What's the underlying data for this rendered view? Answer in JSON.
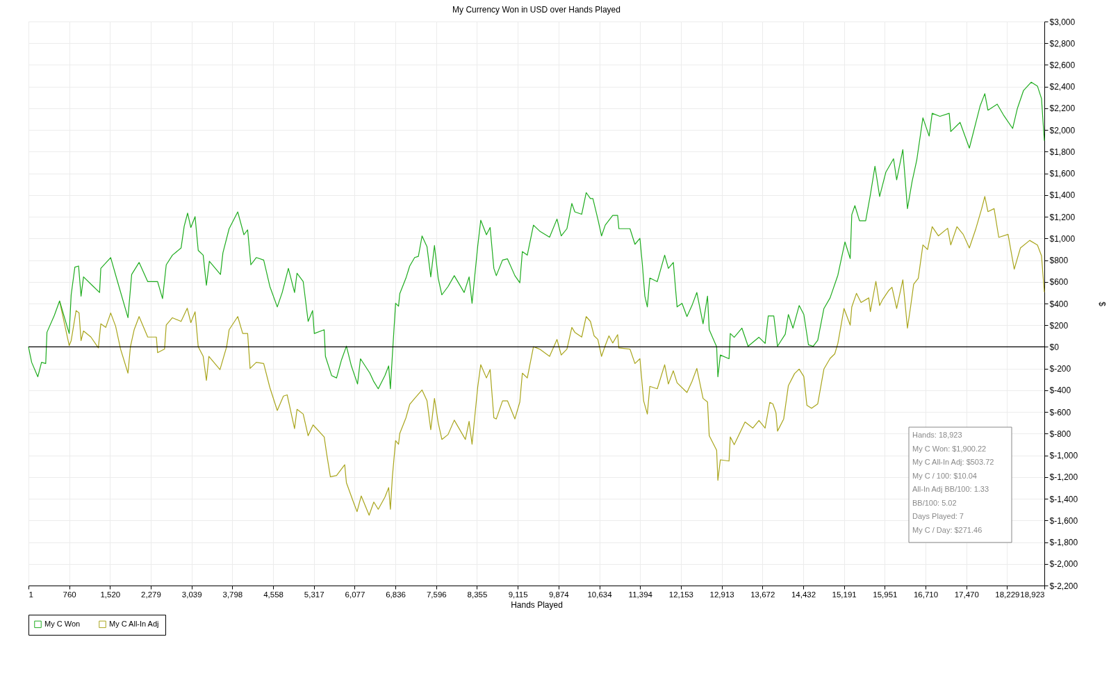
{
  "chart_data": {
    "type": "line",
    "title": "My Currency Won in USD over Hands Played",
    "xlabel": "Hands Played",
    "ylabel": "$",
    "xlim": [
      1,
      18923
    ],
    "xticks": [
      1,
      760,
      {
        "value": 1520,
        "label": "1,520"
      },
      {
        "value": 2279,
        "label": "2,279"
      },
      {
        "value": 3039,
        "label": "3,039"
      },
      {
        "value": 3798,
        "label": "3,798"
      },
      {
        "value": 4558,
        "label": "4,558"
      },
      {
        "value": 5317,
        "label": "5,317"
      },
      {
        "value": 6077,
        "label": "6,077"
      },
      {
        "value": 6836,
        "label": "6,836"
      },
      {
        "value": 7596,
        "label": "7,596"
      },
      {
        "value": 8355,
        "label": "8,355"
      },
      {
        "value": 9115,
        "label": "9,115"
      },
      {
        "value": 9874,
        "label": "9,874"
      },
      {
        "value": 10634,
        "label": "10,634"
      },
      {
        "value": 11394,
        "label": "11,394"
      },
      {
        "value": 12153,
        "label": "12,153"
      },
      {
        "value": 12913,
        "label": "12,913"
      },
      {
        "value": 13672,
        "label": "13,672"
      },
      {
        "value": 14432,
        "label": "14,432"
      },
      {
        "value": 15191,
        "label": "15,191"
      },
      {
        "value": 15951,
        "label": "15,951"
      },
      {
        "value": 16710,
        "label": "16,710"
      },
      {
        "value": 17470,
        "label": "17,470"
      },
      {
        "value": 18229,
        "label": "18,229"
      },
      {
        "value": 18923,
        "label": "18,923"
      }
    ],
    "ylim": [
      -2200,
      3000
    ],
    "yticks": [
      {
        "value": -2200,
        "label": "$-2,200"
      },
      {
        "value": -2000,
        "label": "$-2,000"
      },
      {
        "value": -1800,
        "label": "$-1,800"
      },
      {
        "value": -1600,
        "label": "$-1,600"
      },
      {
        "value": -1400,
        "label": "$-1,400"
      },
      {
        "value": -1200,
        "label": "$-1,200"
      },
      {
        "value": -1000,
        "label": "$-1,000"
      },
      {
        "value": -800,
        "label": "$-800"
      },
      {
        "value": -600,
        "label": "$-600"
      },
      {
        "value": -400,
        "label": "$-400"
      },
      {
        "value": -200,
        "label": "$-200"
      },
      {
        "value": 0,
        "label": "$0"
      },
      {
        "value": 200,
        "label": "$200"
      },
      {
        "value": 400,
        "label": "$400"
      },
      {
        "value": 600,
        "label": "$600"
      },
      {
        "value": 800,
        "label": "$800"
      },
      {
        "value": 1000,
        "label": "$1,000"
      },
      {
        "value": 1200,
        "label": "$1,200"
      },
      {
        "value": 1400,
        "label": "$1,400"
      },
      {
        "value": 1600,
        "label": "$1,600"
      },
      {
        "value": 1800,
        "label": "$1,800"
      },
      {
        "value": 2000,
        "label": "$2,000"
      },
      {
        "value": 2200,
        "label": "$2,200"
      },
      {
        "value": 2400,
        "label": "$2,400"
      },
      {
        "value": 2600,
        "label": "$2,600"
      },
      {
        "value": 2800,
        "label": "$2,800"
      },
      {
        "value": 3000,
        "label": "$3,000"
      }
    ],
    "grid": true,
    "legend": "bottom left",
    "marker": "none",
    "line_style": "solid",
    "ref_lines": [
      {
        "axis": "y",
        "value": 0,
        "color": "#000000"
      }
    ],
    "annotations": [
      "Hands: 18,923",
      "My C Won: $1,900.22",
      "My C All-In Adj: $503.72",
      "My C / 100: $10.04",
      "All-In Adj BB/100: 1.33",
      "BB/100: 5.02",
      "Days Played: 7",
      "My C / Day: $271.46"
    ],
    "series": [
      {
        "name": "My C Won",
        "color": "#1fac1f",
        "x": [
          1,
          60,
          175,
          244,
          322,
          345,
          483,
          580,
          759,
          796,
          865,
          934,
          980,
          1026,
          1210,
          1325,
          1348,
          1532,
          1647,
          1854,
          1923,
          2061,
          2222,
          2406,
          2498,
          2567,
          2682,
          2843,
          2901,
          2965,
          3025,
          3104,
          3163,
          3255,
          3315,
          3370,
          3577,
          3623,
          3738,
          3899,
          4014,
          4083,
          4143,
          4244,
          4382,
          4497,
          4635,
          4727,
          4842,
          4957,
          5003,
          5118,
          5210,
          5293,
          5325,
          5509,
          5532,
          5647,
          5739,
          5831,
          5923,
          6015,
          6130,
          6185,
          6360,
          6433,
          6516,
          6640,
          6710,
          6742,
          6779,
          6839,
          6894,
          6917,
          7032,
          7102,
          7194,
          7263,
          7332,
          7424,
          7494,
          7563,
          7632,
          7701,
          7816,
          7932,
          8116,
          8208,
          8263,
          8323,
          8370,
          8425,
          8531,
          8600,
          8669,
          8715,
          8831,
          8923,
          9061,
          9153,
          9200,
          9292,
          9407,
          9522,
          9707,
          9845,
          9924,
          10030,
          10122,
          10177,
          10306,
          10389,
          10468,
          10514,
          10606,
          10675,
          10744,
          10883,
          10975,
          10998,
          11205,
          11297,
          11390,
          11436,
          11482,
          11528,
          11574,
          11713,
          11851,
          11920,
          12012,
          12082,
          12174,
          12266,
          12358,
          12450,
          12566,
          12649,
          12681,
          12819,
          12842,
          12888,
          13050,
          13073,
          13146,
          13290,
          13405,
          13607,
          13722,
          13780,
          13884,
          13953,
          14097,
          14155,
          14241,
          14356,
          14443,
          14529,
          14616,
          14702,
          14817,
          14932,
          15077,
          15209,
          15307,
          15336,
          15394,
          15480,
          15595,
          15682,
          15768,
          15855,
          15970,
          16114,
          16172,
          16287,
          16373,
          16460,
          16546,
          16661,
          16777,
          16834,
          16978,
          17151,
          17180,
          17353,
          17526,
          17728,
          17814,
          17872,
          18045,
          18160,
          18333,
          18419,
          18534,
          18678,
          18794,
          18870,
          18923
        ],
        "values": [
          0,
          -142,
          -275,
          -142,
          -153,
          135,
          291,
          424,
          124,
          480,
          735,
          746,
          468,
          646,
          557,
          502,
          724,
          824,
          624,
          269,
          668,
          779,
          602,
          602,
          446,
          757,
          846,
          912,
          1112,
          1234,
          1101,
          1201,
          890,
          846,
          568,
          790,
          668,
          868,
          1090,
          1245,
          1034,
          1079,
          757,
          824,
          801,
          557,
          369,
          502,
          724,
          502,
          679,
          602,
          235,
          335,
          124,
          158,
          -87,
          -264,
          -286,
          -120,
          7,
          -175,
          -342,
          -109,
          -242,
          -320,
          -386,
          -264,
          -175,
          -386,
          -75,
          402,
          375,
          491,
          635,
          746,
          824,
          835,
          1023,
          923,
          646,
          935,
          635,
          480,
          557,
          657,
          502,
          646,
          402,
          702,
          935,
          1168,
          1034,
          1101,
          724,
          657,
          801,
          812,
          657,
          591,
          879,
          846,
          1123,
          1068,
          1012,
          1179,
          1023,
          1090,
          1323,
          1245,
          1223,
          1423,
          1368,
          1368,
          1179,
          1023,
          1123,
          1212,
          1212,
          1090,
          1090,
          946,
          1001,
          757,
          468,
          369,
          635,
          602,
          846,
          724,
          779,
          369,
          402,
          280,
          380,
          502,
          213,
          468,
          158,
          2,
          -275,
          -75,
          -109,
          124,
          89,
          173,
          6,
          89,
          33,
          285,
          285,
          6,
          117,
          299,
          173,
          382,
          299,
          20,
          6,
          61,
          354,
          452,
          661,
          968,
          815,
          1219,
          1303,
          1163,
          1163,
          1401,
          1666,
          1387,
          1610,
          1735,
          1540,
          1819,
          1275,
          1526,
          1721,
          2112,
          1944,
          2154,
          2126,
          2154,
          1986,
          2070,
          1833,
          2224,
          2335,
          2182,
          2238,
          2140,
          2014,
          2196,
          2363,
          2441,
          2405,
          2290,
          1900
        ]
      },
      {
        "name": "My C All-In Adj",
        "color": "#a9a51c",
        "x": [
          580,
          759,
          796,
          888,
          943,
          980,
          1026,
          1164,
          1302,
          1348,
          1440,
          1532,
          1624,
          1716,
          1854,
          1900,
          1969,
          2061,
          2222,
          2383,
          2406,
          2535,
          2567,
          2682,
          2843,
          2958,
          3025,
          3104,
          3163,
          3255,
          3315,
          3361,
          3568,
          3692,
          3738,
          3899,
          3991,
          4083,
          4129,
          4244,
          4382,
          4497,
          4635,
          4750,
          4819,
          4957,
          5003,
          5118,
          5210,
          5302,
          5509,
          5555,
          5624,
          5739,
          5891,
          5923,
          6061,
          6121,
          6199,
          6346,
          6433,
          6516,
          6640,
          6710,
          6742,
          6779,
          6839,
          6894,
          6917,
          7032,
          7102,
          7194,
          7332,
          7424,
          7494,
          7563,
          7632,
          7701,
          7816,
          7932,
          8139,
          8208,
          8263,
          8323,
          8370,
          8425,
          8531,
          8600,
          8669,
          8715,
          8831,
          8923,
          9061,
          9153,
          9200,
          9292,
          9407,
          9522,
          9707,
          9845,
          9924,
          10030,
          10122,
          10177,
          10306,
          10389,
          10468,
          10537,
          10606,
          10675,
          10744,
          10813,
          10883,
          10975,
          10998,
          11205,
          11297,
          11390,
          11459,
          11528,
          11574,
          11713,
          11851,
          11920,
          12012,
          12082,
          12266,
          12358,
          12450,
          12566,
          12649,
          12681,
          12819,
          12842,
          12888,
          13050,
          13073,
          13146,
          13348,
          13492,
          13607,
          13722,
          13809,
          13866,
          13924,
          13953,
          14068,
          14155,
          14270,
          14356,
          14443,
          14500,
          14587,
          14702,
          14817,
          14932,
          15019,
          15077,
          15192,
          15307,
          15336,
          15423,
          15509,
          15653,
          15682,
          15785,
          15855,
          15912,
          16027,
          16085,
          16172,
          16287,
          16373,
          16431,
          16489,
          16575,
          16661,
          16748,
          16834,
          16950,
          17122,
          17180,
          17295,
          17411,
          17526,
          17641,
          17756,
          17814,
          17872,
          17987,
          18074,
          18247,
          18362,
          18477,
          18650,
          18794,
          18870,
          18923
        ],
        "values": [
          424,
          13,
          58,
          335,
          313,
          58,
          147,
          91,
          -9,
          213,
          180,
          313,
          191,
          -20,
          -242,
          2,
          158,
          280,
          91,
          91,
          -53,
          -20,
          202,
          269,
          235,
          357,
          224,
          324,
          2,
          -87,
          -309,
          -87,
          -209,
          2,
          158,
          280,
          124,
          124,
          -198,
          -142,
          -153,
          -375,
          -586,
          -453,
          -442,
          -753,
          -575,
          -619,
          -819,
          -719,
          -830,
          -986,
          -1197,
          -1186,
          -1086,
          -1252,
          -1441,
          -1519,
          -1374,
          -1552,
          -1430,
          -1497,
          -1385,
          -1297,
          -1497,
          -1197,
          -864,
          -897,
          -797,
          -653,
          -530,
          -475,
          -397,
          -497,
          -764,
          -475,
          -697,
          -853,
          -808,
          -675,
          -853,
          -686,
          -897,
          -597,
          -364,
          -164,
          -286,
          -209,
          -653,
          -664,
          -497,
          -497,
          -664,
          -508,
          -242,
          -286,
          2,
          -20,
          -87,
          69,
          -75,
          -20,
          180,
          135,
          91,
          280,
          235,
          102,
          69,
          -87,
          13,
          102,
          36,
          113,
          -9,
          -20,
          -153,
          -109,
          -497,
          -619,
          -364,
          -386,
          -164,
          -342,
          -220,
          -331,
          -420,
          -320,
          -198,
          -475,
          -508,
          -819,
          -953,
          -1230,
          -1041,
          -1052,
          -830,
          -901,
          -692,
          -748,
          -678,
          -748,
          -511,
          -525,
          -608,
          -776,
          -664,
          -357,
          -246,
          -204,
          -273,
          -538,
          -566,
          -525,
          -204,
          -106,
          -64,
          33,
          354,
          201,
          368,
          494,
          410,
          452,
          326,
          605,
          382,
          438,
          522,
          550,
          354,
          619,
          173,
          368,
          578,
          633,
          940,
          898,
          1108,
          1024,
          1094,
          940,
          1108,
          1038,
          912,
          1080,
          1275,
          1387,
          1247,
          1275,
          1010,
          1038,
          717,
          912,
          982,
          940,
          840,
          504
        ]
      }
    ]
  }
}
